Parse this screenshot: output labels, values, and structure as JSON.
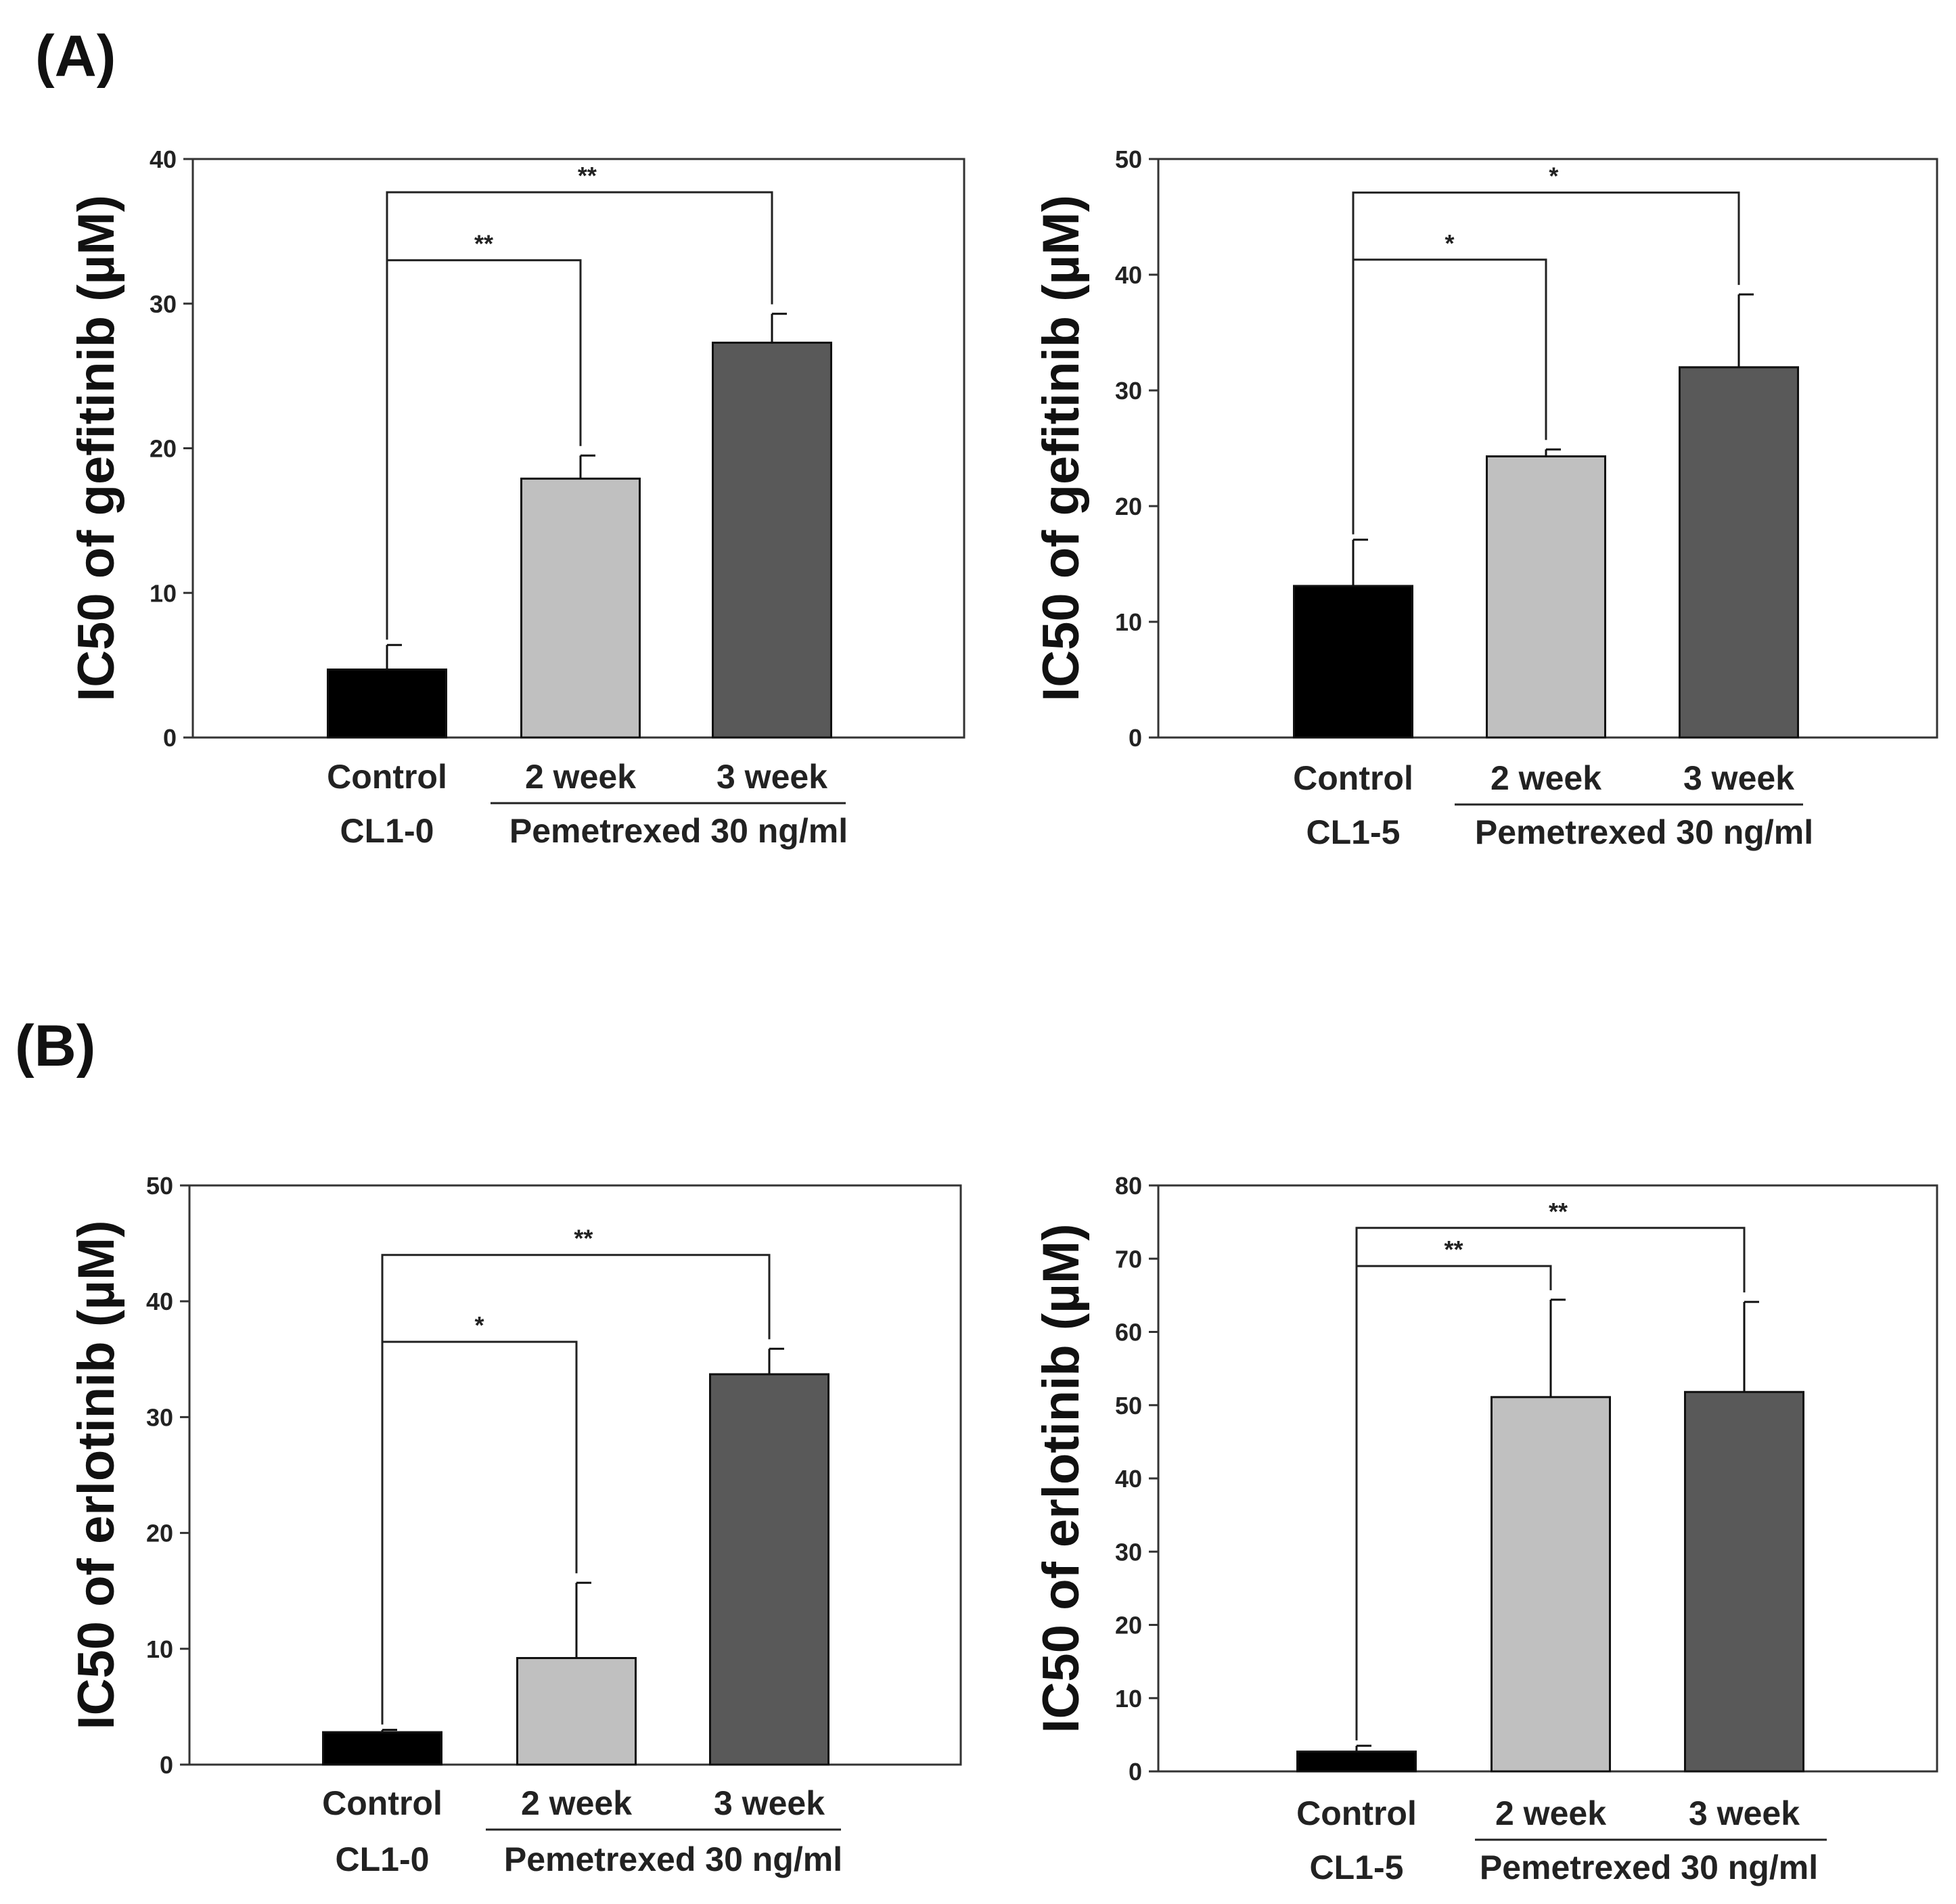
{
  "panels": [
    {
      "label": "(A)"
    },
    {
      "label": "(B)"
    }
  ],
  "chart_data": [
    {
      "type": "bar",
      "panel": "(A)",
      "ylabel": "IC50 of gefitinib (µM)",
      "ylim": [
        0,
        40
      ],
      "yticks": [
        0,
        10,
        20,
        30,
        40
      ],
      "categories": [
        "Control",
        "2 week",
        "3 week"
      ],
      "values": [
        4.7,
        17.9,
        27.3
      ],
      "errors": [
        1.7,
        1.6,
        2.0
      ],
      "colors": [
        "#000000",
        "#c0c0c0",
        "#595959"
      ],
      "cell_line_label": "CL1-0",
      "treatment_label": "Pemetrexed 30 ng/ml",
      "significance": [
        {
          "from": 0,
          "to": 1,
          "label": "**",
          "y": 33.0
        },
        {
          "from": 0,
          "to": 2,
          "label": "**",
          "y": 37.7
        }
      ]
    },
    {
      "type": "bar",
      "panel": "(A)",
      "ylabel": "IC50 of gefitinib (µM)",
      "ylim": [
        0,
        50
      ],
      "yticks": [
        0,
        10,
        20,
        30,
        40,
        50
      ],
      "categories": [
        "Control",
        "2 week",
        "3 week"
      ],
      "values": [
        13.1,
        24.3,
        32.0
      ],
      "errors": [
        4.0,
        0.6,
        6.3
      ],
      "colors": [
        "#000000",
        "#c0c0c0",
        "#595959"
      ],
      "cell_line_label": "CL1-5",
      "treatment_label": "Pemetrexed 30 ng/ml",
      "significance": [
        {
          "from": 0,
          "to": 1,
          "label": "*",
          "y": 41.3
        },
        {
          "from": 0,
          "to": 2,
          "label": "*",
          "y": 47.1
        }
      ]
    },
    {
      "type": "bar",
      "panel": "(B)",
      "ylabel": "IC50 of erlotinib (µM)",
      "ylim": [
        0,
        50
      ],
      "yticks": [
        0,
        10,
        20,
        30,
        40,
        50
      ],
      "categories": [
        "Control",
        "2 week",
        "3 week"
      ],
      "values": [
        2.8,
        9.2,
        33.7
      ],
      "errors": [
        0.2,
        6.5,
        2.2
      ],
      "colors": [
        "#000000",
        "#c0c0c0",
        "#595959"
      ],
      "cell_line_label": "CL1-0",
      "treatment_label": "Pemetrexed 30 ng/ml",
      "significance": [
        {
          "from": 0,
          "to": 1,
          "label": "*",
          "y": 36.5
        },
        {
          "from": 0,
          "to": 2,
          "label": "**",
          "y": 44.0
        }
      ]
    },
    {
      "type": "bar",
      "panel": "(B)",
      "ylabel": "IC50 of erlotinib (µM)",
      "ylim": [
        0,
        80
      ],
      "yticks": [
        0,
        10,
        20,
        30,
        40,
        50,
        60,
        70,
        80
      ],
      "categories": [
        "Control",
        "2 week",
        "3 week"
      ],
      "values": [
        2.7,
        51.1,
        51.8
      ],
      "errors": [
        0.8,
        13.3,
        12.3
      ],
      "colors": [
        "#000000",
        "#c0c0c0",
        "#595959"
      ],
      "cell_line_label": "CL1-5",
      "treatment_label": "Pemetrexed 30 ng/ml",
      "significance": [
        {
          "from": 0,
          "to": 1,
          "label": "**",
          "y": 69.0
        },
        {
          "from": 0,
          "to": 2,
          "label": "**",
          "y": 74.2
        }
      ]
    }
  ]
}
